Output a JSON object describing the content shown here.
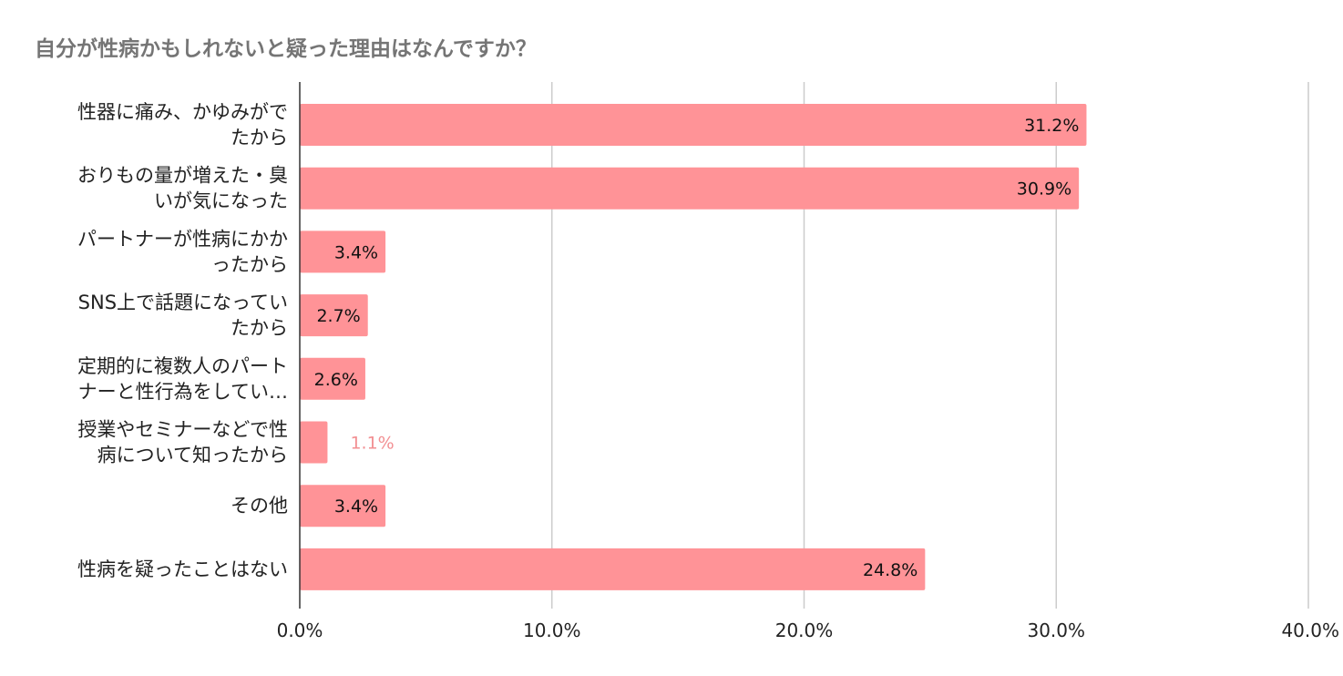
{
  "chart_data": {
    "type": "bar",
    "orientation": "horizontal",
    "title": "自分が性病かもしれないと疑った理由はなんですか？",
    "xlabel": "",
    "ylabel": "",
    "categories": [
      [
        "性器に痛み、かゆみがで",
        "たから"
      ],
      [
        "おりもの量が増えた・臭",
        "いが気になった"
      ],
      [
        "パートナーが性病にかか",
        "ったから"
      ],
      [
        "SNS上で話題になってい",
        "たから"
      ],
      [
        "定期的に複数人のパート",
        "ナーと性行為をしてい…"
      ],
      [
        "授業やセミナーなどで性",
        "病について知ったから"
      ],
      [
        "その他"
      ],
      [
        "性病を疑ったことはない"
      ]
    ],
    "values": [
      31.2,
      30.9,
      3.4,
      2.7,
      2.6,
      1.1,
      3.4,
      24.8
    ],
    "value_labels": [
      "31.2%",
      "30.9%",
      "3.4%",
      "2.7%",
      "2.6%",
      "1.1%",
      "3.4%",
      "24.8%"
    ],
    "xlim": [
      0,
      40
    ],
    "ticks": [
      0,
      10,
      20,
      30,
      40
    ],
    "tick_labels": [
      "0.0%",
      "10.0%",
      "20.0%",
      "30.0%",
      "40.0%"
    ],
    "grid": true,
    "legend": "none",
    "colors": {
      "bar": "#ff9397",
      "outside_label": "#f28f92",
      "inside_label": "#111111",
      "grid": "#cccccc",
      "axis": "#333333",
      "title": "#757575"
    }
  }
}
